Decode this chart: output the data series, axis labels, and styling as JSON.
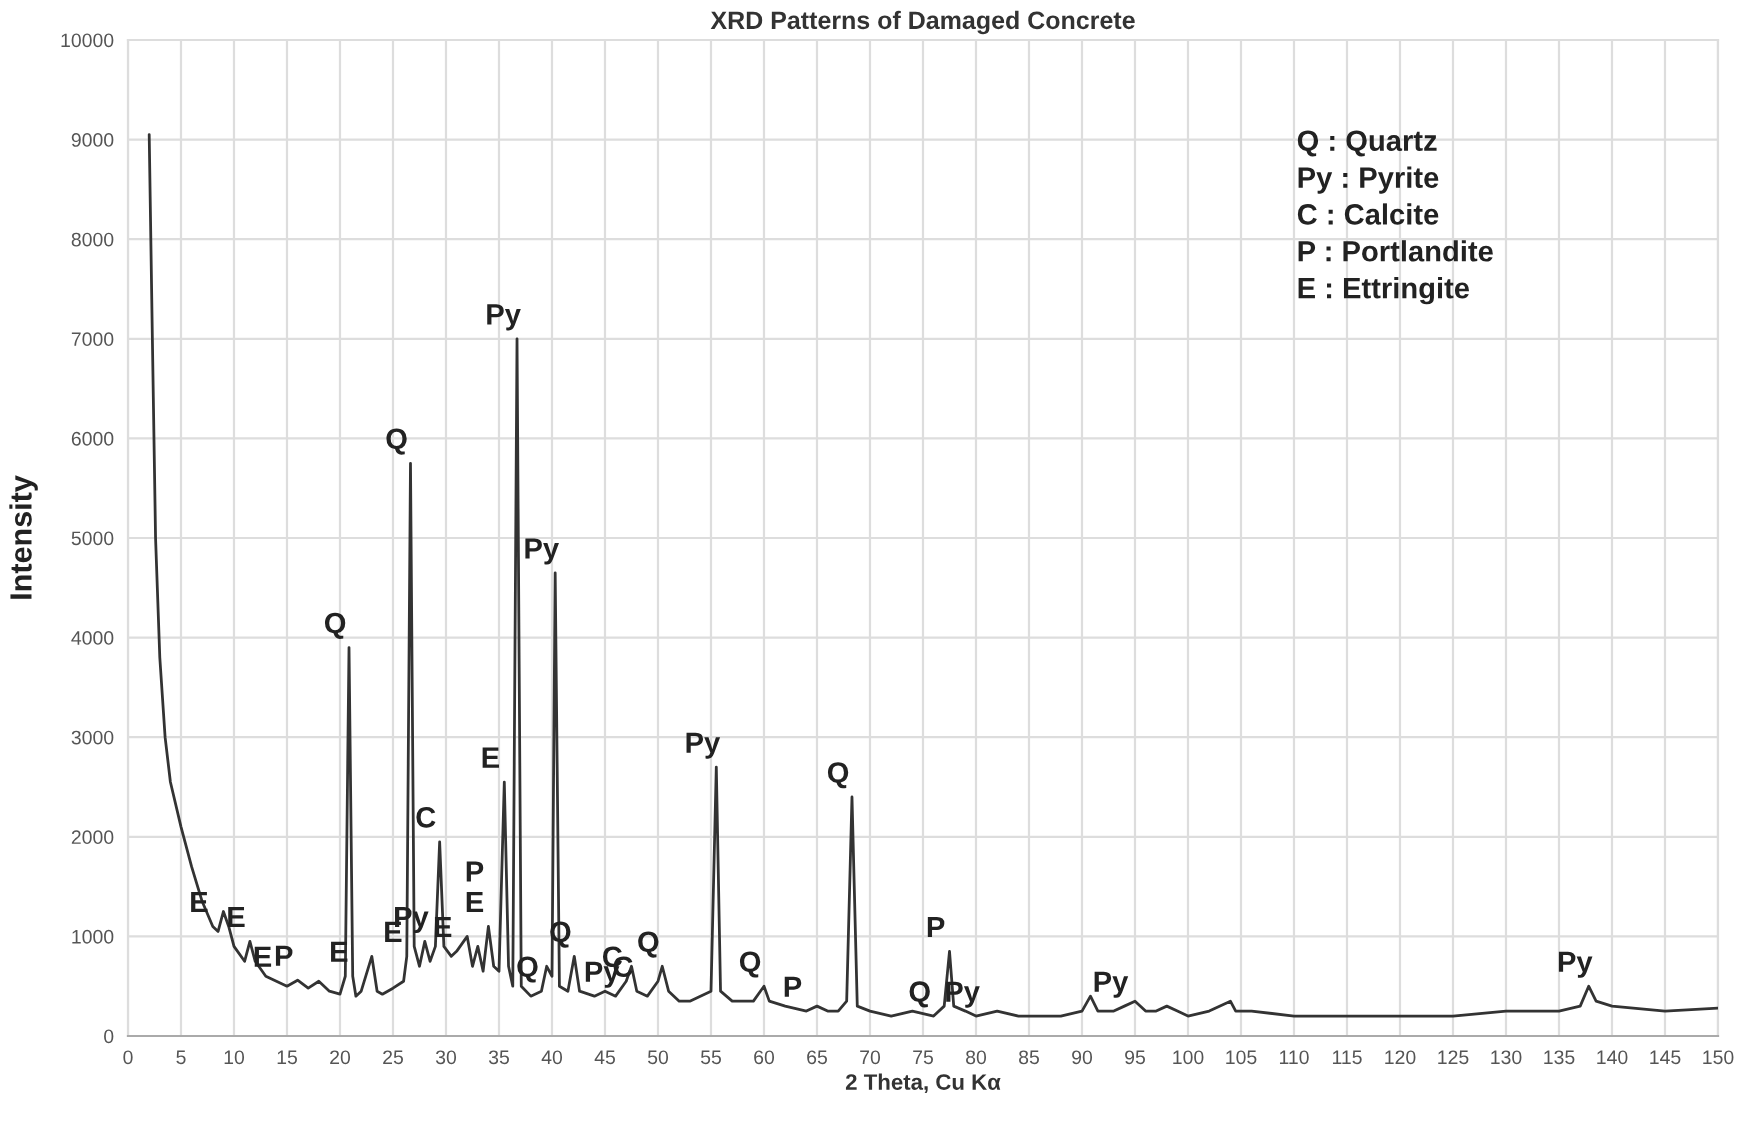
{
  "chart_data": {
    "type": "line",
    "title": "XRD Patterns of Damaged Concrete",
    "xlabel": "2 Theta, Cu Kα",
    "ylabel": "Intensity",
    "xlim": [
      0,
      150
    ],
    "ylim": [
      0,
      10000
    ],
    "xticks": [
      0,
      5,
      10,
      15,
      20,
      25,
      30,
      35,
      40,
      45,
      50,
      55,
      60,
      65,
      70,
      75,
      80,
      85,
      90,
      95,
      100,
      105,
      110,
      115,
      120,
      125,
      130,
      135,
      140,
      145,
      150
    ],
    "yticks": [
      0,
      1000,
      2000,
      3000,
      4000,
      5000,
      6000,
      7000,
      8000,
      9000,
      10000
    ],
    "grid": true,
    "marker": "none",
    "line_style": "solid",
    "series": [
      {
        "color": "#333333",
        "x": [
          2,
          2.3,
          2.6,
          3,
          3.5,
          4,
          5,
          6,
          7,
          8,
          8.5,
          9,
          9.5,
          10,
          11,
          11.5,
          12,
          13,
          14,
          15,
          16,
          17,
          18,
          19,
          20,
          20.5,
          20.85,
          21.2,
          21.5,
          22,
          23,
          23.5,
          24,
          25,
          26,
          26.3,
          26.65,
          27,
          27.5,
          28,
          28.5,
          29,
          29.4,
          29.8,
          30.5,
          31,
          32,
          32.5,
          33,
          33.5,
          34,
          34.5,
          35,
          35.5,
          35.9,
          36.3,
          36.7,
          37.1,
          38,
          39,
          39.5,
          40,
          40.3,
          40.7,
          41.5,
          42.1,
          42.6,
          44,
          45,
          46,
          47,
          47.5,
          48,
          49,
          50,
          50.4,
          51,
          52,
          53,
          54,
          55,
          55.5,
          55.9,
          57,
          58,
          59,
          60,
          60.5,
          62,
          64,
          65,
          66,
          67,
          67.8,
          68.3,
          68.8,
          70,
          72,
          74,
          76,
          77,
          77.5,
          77.9,
          79,
          80,
          82,
          84,
          86,
          88,
          90,
          90.8,
          91.5,
          93,
          94,
          95,
          96,
          97,
          98,
          99,
          100,
          102,
          104,
          104.5,
          106,
          110,
          115,
          120,
          125,
          130,
          135,
          137,
          137.8,
          138.5,
          140,
          145,
          150
        ],
        "values": [
          9050,
          7000,
          5000,
          3800,
          3000,
          2550,
          2100,
          1700,
          1350,
          1100,
          1050,
          1250,
          1100,
          900,
          750,
          950,
          750,
          600,
          550,
          500,
          560,
          480,
          550,
          450,
          420,
          600,
          3900,
          600,
          400,
          450,
          800,
          450,
          420,
          480,
          550,
          800,
          5750,
          900,
          700,
          950,
          750,
          900,
          1950,
          900,
          800,
          850,
          1000,
          700,
          900,
          650,
          1100,
          700,
          650,
          2550,
          700,
          500,
          7000,
          500,
          400,
          450,
          700,
          600,
          4650,
          500,
          450,
          800,
          450,
          400,
          450,
          400,
          550,
          700,
          450,
          400,
          550,
          700,
          450,
          350,
          350,
          400,
          450,
          2700,
          450,
          350,
          350,
          350,
          500,
          350,
          300,
          250,
          300,
          250,
          250,
          350,
          2400,
          300,
          250,
          200,
          250,
          200,
          300,
          850,
          300,
          250,
          200,
          250,
          200,
          200,
          200,
          250,
          400,
          250,
          250,
          300,
          350,
          250,
          250,
          300,
          250,
          200,
          250,
          350,
          250,
          250,
          200,
          200,
          200,
          200,
          250,
          250,
          300,
          500,
          350,
          300,
          250,
          280
        ]
      }
    ],
    "annotations": [
      {
        "text": "E",
        "x": 8,
        "y": 1100
      },
      {
        "text": "E",
        "x": 11.5,
        "y": 950
      },
      {
        "text": "E",
        "x": 14,
        "y": 550
      },
      {
        "text": "P",
        "x": 16,
        "y": 560
      },
      {
        "text": "Q",
        "x": 20.85,
        "y": 3900
      },
      {
        "text": "E",
        "x": 21.2,
        "y": 600
      },
      {
        "text": "Q",
        "x": 26.65,
        "y": 5750
      },
      {
        "text": "E",
        "x": 26.3,
        "y": 800
      },
      {
        "text": "Py",
        "x": 28,
        "y": 950
      },
      {
        "text": "C",
        "x": 29.4,
        "y": 1950
      },
      {
        "text": "E",
        "x": 31,
        "y": 850
      },
      {
        "text": "E",
        "x": 34,
        "y": 1100
      },
      {
        "text": "P",
        "x": 34,
        "y": 1100
      },
      {
        "text": "E",
        "x": 35.5,
        "y": 2550
      },
      {
        "text": "Py",
        "x": 36.7,
        "y": 7000
      },
      {
        "text": "Q",
        "x": 39,
        "y": 450
      },
      {
        "text": "Py",
        "x": 40.3,
        "y": 4650
      },
      {
        "text": "Q",
        "x": 42.1,
        "y": 800
      },
      {
        "text": "Py",
        "x": 46,
        "y": 400
      },
      {
        "text": "C",
        "x": 47,
        "y": 550
      },
      {
        "text": "C",
        "x": 48,
        "y": 450
      },
      {
        "text": "Q",
        "x": 50.4,
        "y": 700
      },
      {
        "text": "Py",
        "x": 55.5,
        "y": 2700
      },
      {
        "text": "Q",
        "x": 60,
        "y": 500
      },
      {
        "text": "P",
        "x": 64,
        "y": 250
      },
      {
        "text": "Q",
        "x": 68.3,
        "y": 2400
      },
      {
        "text": "Q",
        "x": 76,
        "y": 200
      },
      {
        "text": "P",
        "x": 77.5,
        "y": 850
      },
      {
        "text": "Py",
        "x": 80,
        "y": 200
      },
      {
        "text": "Py",
        "x": 94,
        "y": 300
      },
      {
        "text": "Py",
        "x": 137.8,
        "y": 500
      },
      "Q : Quartz",
      "Py : Pyrite",
      "C : Calcite",
      "P : Portlandite",
      "E : Ettringite"
    ]
  }
}
